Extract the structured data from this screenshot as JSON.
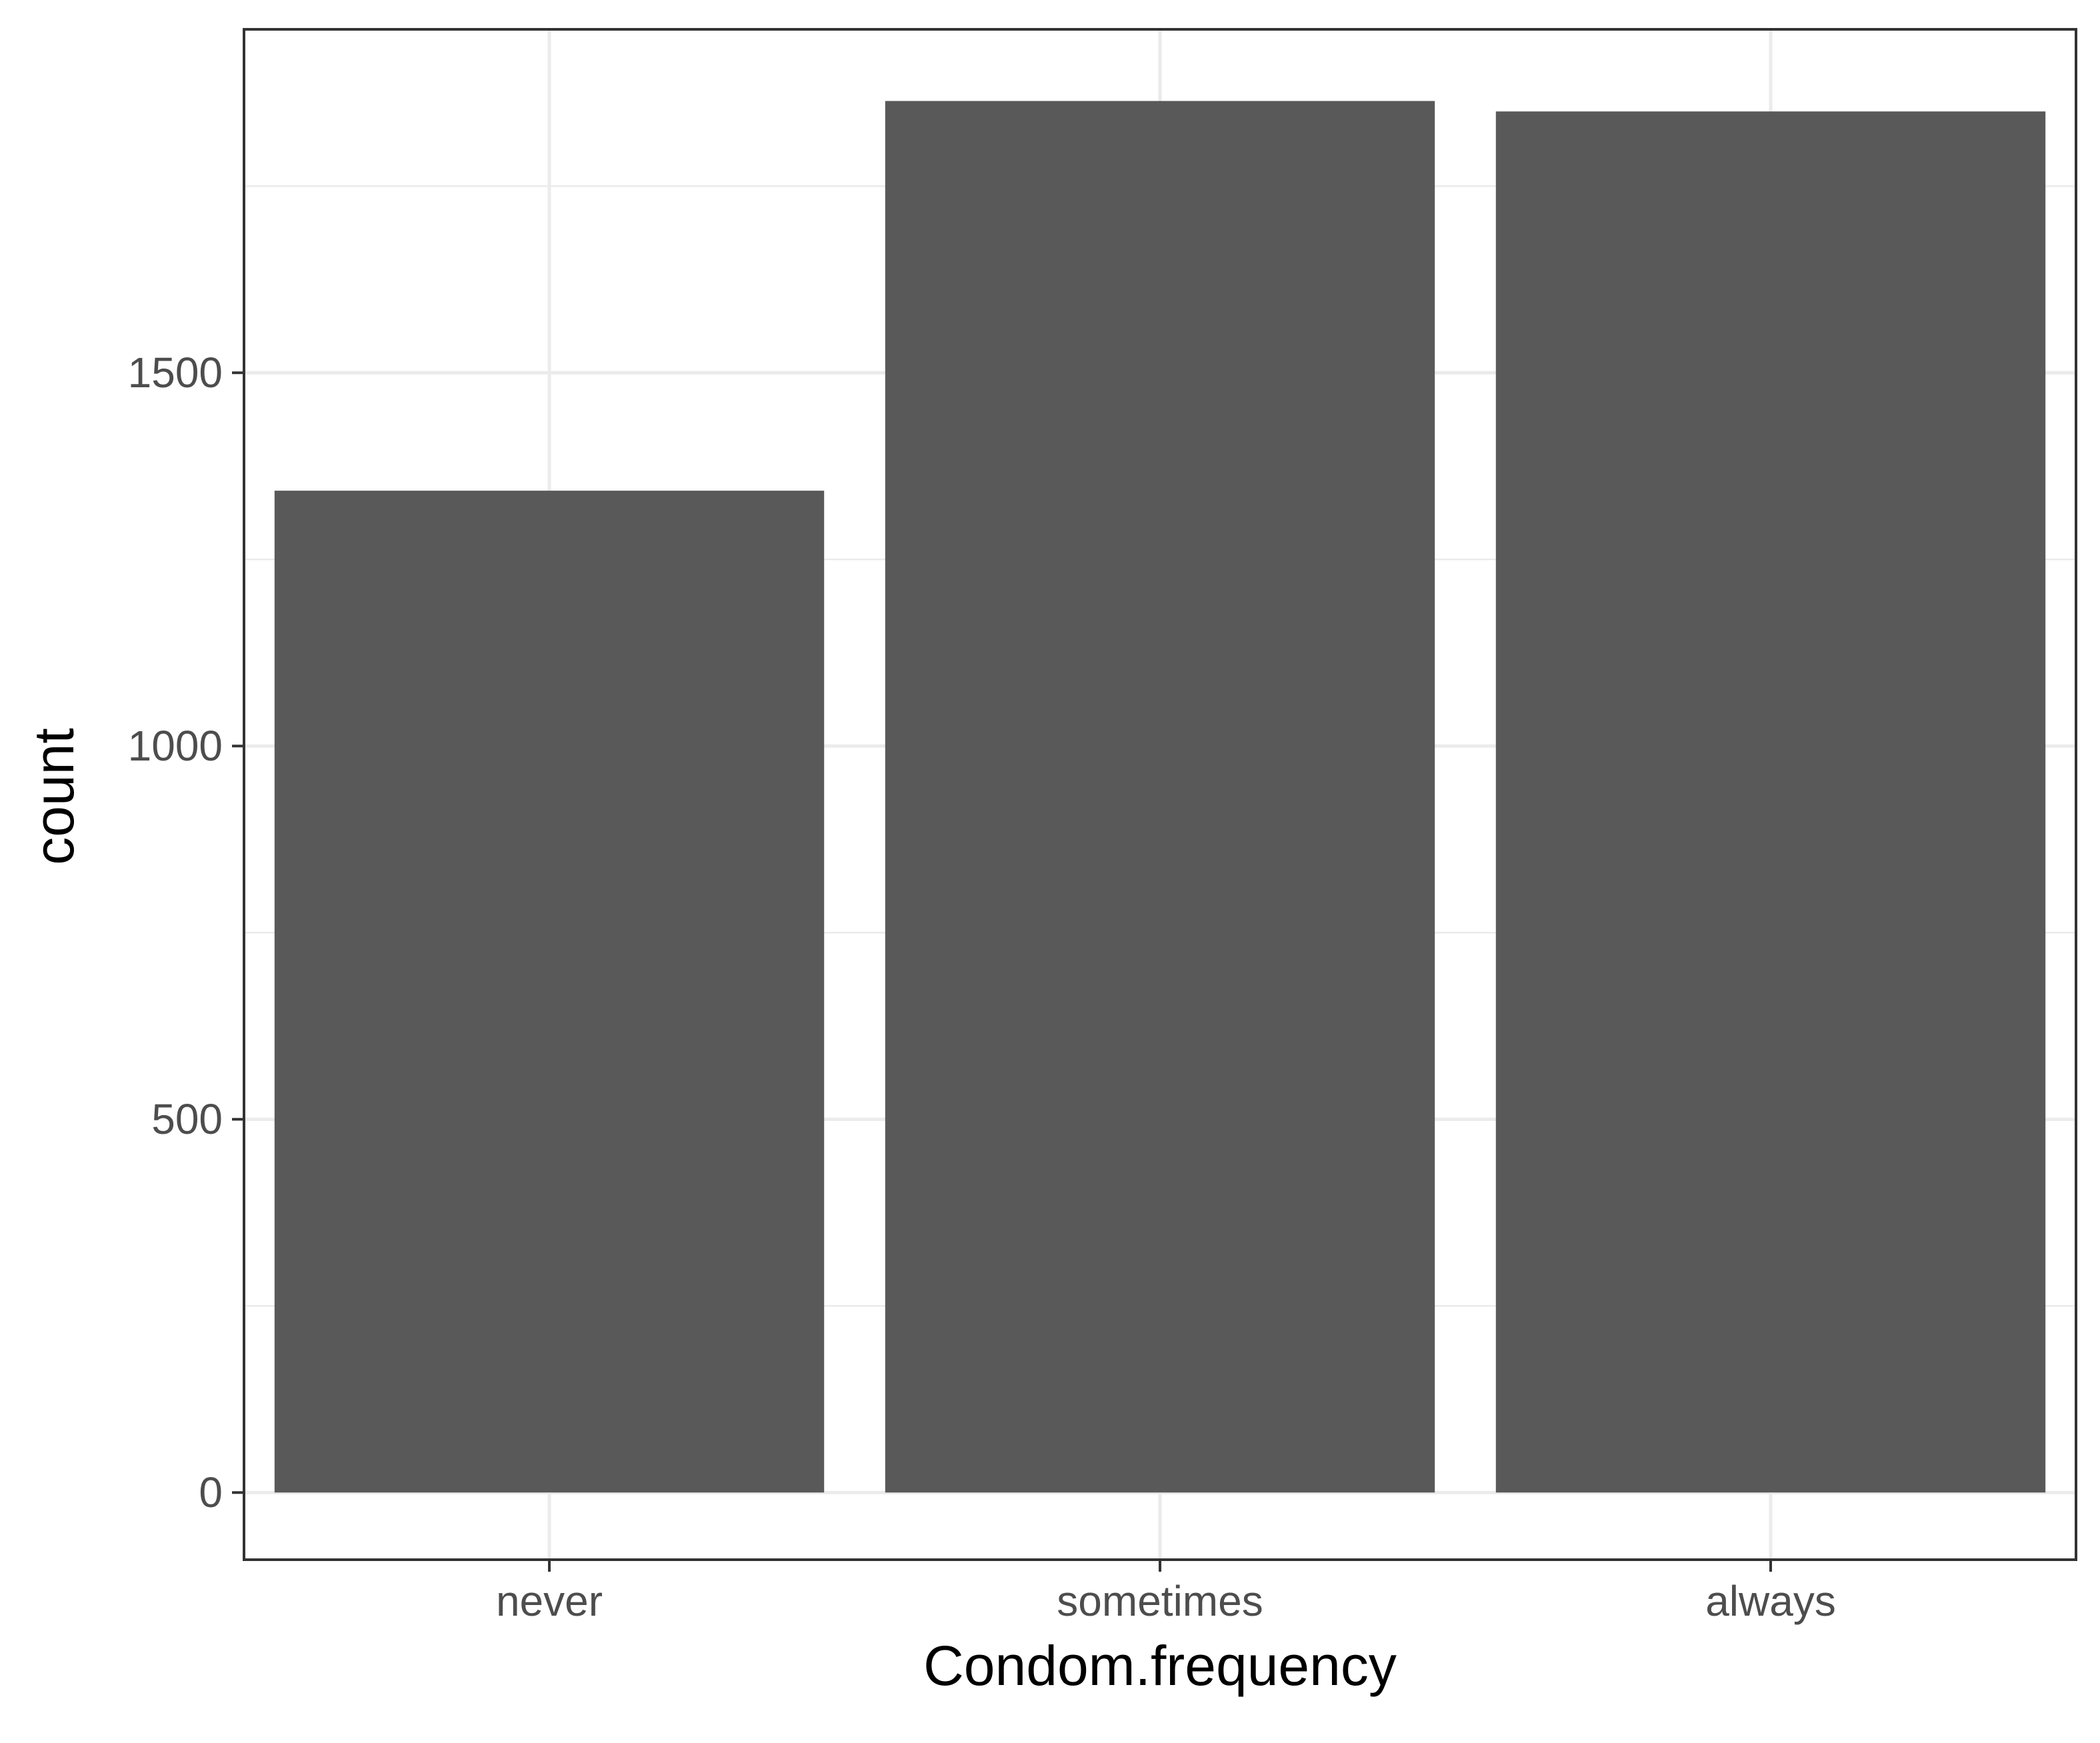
{
  "chart_data": {
    "type": "bar",
    "title": "",
    "xlabel": "Condom.frequency",
    "ylabel": "count",
    "categories": [
      "never",
      "sometimes",
      "always"
    ],
    "values": [
      1342,
      1864,
      1850
    ],
    "ylim": [
      -90,
      1960
    ],
    "yticks": [
      0,
      500,
      1000,
      1500
    ],
    "yticklabels": [
      "0",
      "500",
      "1000",
      "1500"
    ],
    "grid": true,
    "legend": "none",
    "colors": {
      "bar": "#595959",
      "grid": "#ebebeb",
      "border": "#333333",
      "tick_text": "#4d4d4d",
      "axis_title": "#000000",
      "background": "#ffffff"
    }
  }
}
